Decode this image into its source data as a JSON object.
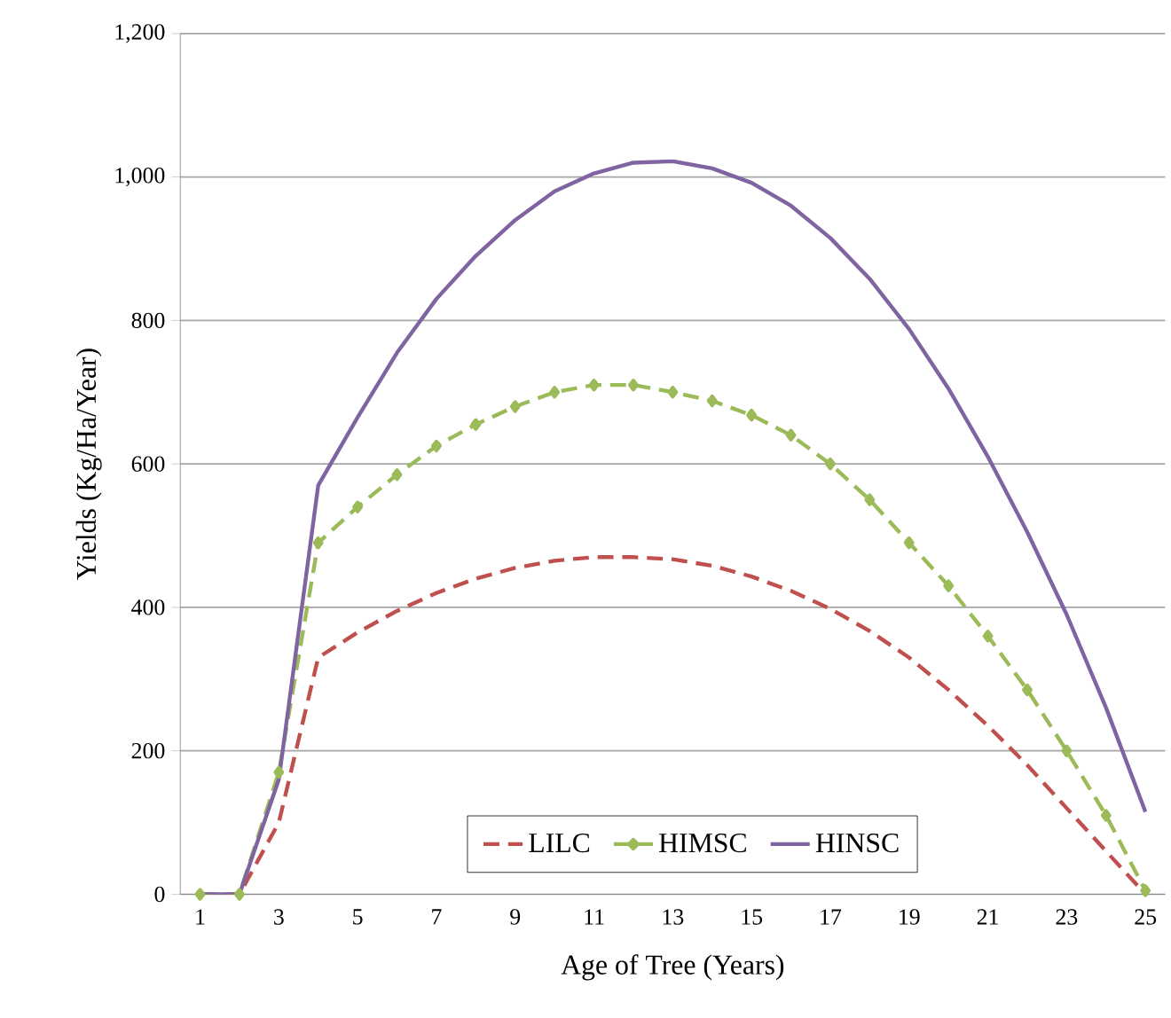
{
  "chart_data": {
    "type": "line",
    "xlabel": "Age of Tree (Years)",
    "ylabel": "Yields (Kg/Ha/Year)",
    "categories": [
      "1",
      null,
      "3",
      null,
      "5",
      null,
      "7",
      null,
      "9",
      null,
      "11",
      null,
      "13",
      null,
      "15",
      null,
      "17",
      null,
      "19",
      null,
      "21",
      null,
      "23",
      null,
      "25"
    ],
    "series": [
      {
        "name": "LILC",
        "color": "#c0504d",
        "line_style": "dashed",
        "marker": "none",
        "values": [
          0,
          0,
          100,
          330,
          365,
          395,
          420,
          440,
          455,
          465,
          470,
          470,
          467,
          458,
          443,
          423,
          398,
          367,
          330,
          285,
          235,
          180,
          120,
          60,
          0
        ]
      },
      {
        "name": "HIMSC",
        "color": "#9bbb59",
        "line_style": "dashed",
        "marker": "diamond",
        "values": [
          0,
          0,
          170,
          490,
          540,
          585,
          625,
          655,
          680,
          700,
          710,
          710,
          700,
          688,
          668,
          640,
          600,
          550,
          490,
          430,
          360,
          285,
          200,
          110,
          5
        ]
      },
      {
        "name": "HINSC",
        "color": "#8064a2",
        "line_style": "solid",
        "marker": "none",
        "values": [
          0,
          0,
          160,
          570,
          665,
          755,
          830,
          890,
          940,
          980,
          1005,
          1020,
          1022,
          1012,
          992,
          960,
          915,
          858,
          788,
          705,
          610,
          505,
          390,
          260,
          115
        ]
      }
    ],
    "ylim": [
      0,
      1200
    ],
    "yticks": [
      0,
      200,
      400,
      600,
      800,
      {
        "value": 1000,
        "label": "1,000"
      },
      {
        "value": 1200,
        "label": "1,200"
      }
    ],
    "grid": "y",
    "legend": "bottom"
  }
}
